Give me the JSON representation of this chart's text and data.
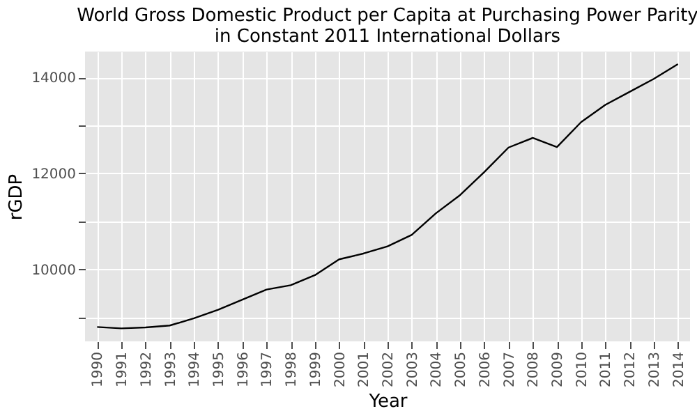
{
  "chart_data": {
    "type": "line",
    "title": "World Gross Domestic Product per Capita at Purchasing Power Parity\nin Constant 2011 International Dollars",
    "xlabel": "Year",
    "ylabel": "rGDP",
    "categories": [
      "1990",
      "1991",
      "1992",
      "1993",
      "1994",
      "1995",
      "1996",
      "1997",
      "1998",
      "1999",
      "2000",
      "2001",
      "2002",
      "2003",
      "2004",
      "2005",
      "2006",
      "2007",
      "2008",
      "2009",
      "2010",
      "2011",
      "2012",
      "2013",
      "2014"
    ],
    "series": [
      {
        "color": "#000000",
        "values": [
          8800,
          8770,
          8790,
          8830,
          8980,
          9160,
          9370,
          9580,
          9670,
          9880,
          10210,
          10330,
          10480,
          10720,
          11170,
          11550,
          12030,
          12540,
          12740,
          12550,
          13070,
          13430,
          13700,
          13970,
          14280
        ]
      }
    ],
    "ylim": [
      8500,
      14540
    ],
    "yticks": [
      {
        "value": 9000,
        "label": null
      },
      10000,
      {
        "value": 11000,
        "label": null
      },
      12000,
      {
        "value": 13000,
        "label": null
      },
      14000
    ],
    "grid": true,
    "marker": "none",
    "line_style": "solid"
  }
}
